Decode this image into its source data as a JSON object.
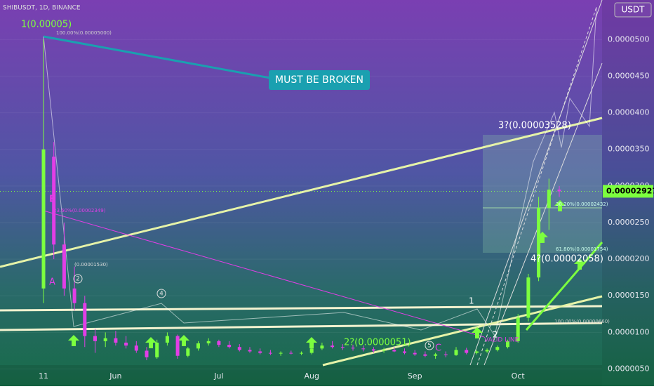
{
  "chart_data": {
    "type": "candlestick",
    "title": "SHIBUSDT, 1D, BINANCE",
    "currency": "USDT",
    "categories": [
      "11",
      null,
      null,
      null,
      null,
      null,
      null,
      "Jun",
      null,
      null,
      null,
      null,
      null,
      null,
      null,
      null,
      null,
      "Jul",
      null,
      null,
      null,
      null,
      null,
      null,
      null,
      null,
      "Aug",
      null,
      null,
      null,
      null,
      null,
      null,
      null,
      null,
      null,
      "Sep",
      null,
      null,
      null,
      null,
      null,
      null,
      null,
      null,
      null,
      "Oct",
      null,
      null,
      null,
      null
    ],
    "ohlc": [
      [
        1.6e-05,
        5e-05,
        1.4e-05,
        3.5e-05
      ],
      [
        3.4e-05,
        3.6e-05,
        2e-05,
        2.2e-05
      ],
      [
        2.2e-05,
        2.5e-05,
        1.5e-05,
        1.6e-05
      ],
      [
        1.6e-05,
        1.9e-05,
        1.3e-05,
        1.4e-05
      ],
      [
        1.4e-05,
        1.5e-05,
        8e-06,
        9.5e-06
      ],
      [
        9.5e-06,
        1.05e-05,
        7.2e-06,
        8.8e-06
      ],
      [
        8.8e-06,
        1e-05,
        8e-06,
        9.2e-06
      ],
      [
        9.2e-06,
        1.02e-05,
        8.2e-06,
        8.6e-06
      ],
      [
        8.6e-06,
        9.5e-06,
        7.8e-06,
        8.2e-06
      ],
      [
        8.2e-06,
        8.8e-06,
        7.2e-06,
        7.5e-06
      ],
      [
        7.5e-06,
        8e-06,
        6.2e-06,
        6.6e-06
      ],
      [
        6.6e-06,
        9e-06,
        6.4e-06,
        8.6e-06
      ],
      [
        8.6e-06,
        1e-05,
        8.2e-06,
        9.5e-06
      ],
      [
        9.5e-06,
        9.7e-06,
        6.4e-06,
        6.8e-06
      ],
      [
        6.8e-06,
        8e-06,
        6.6e-06,
        7.8e-06
      ],
      [
        7.8e-06,
        8.8e-06,
        7.5e-06,
        8.5e-06
      ],
      [
        8.5e-06,
        9.2e-06,
        8.2e-06,
        8.8e-06
      ],
      [
        8.8e-06,
        9e-06,
        8e-06,
        8.3e-06
      ],
      [
        8.3e-06,
        8.8e-06,
        7.8e-06,
        8e-06
      ],
      [
        8e-06,
        8.4e-06,
        7.4e-06,
        7.6e-06
      ],
      [
        7.6e-06,
        8e-06,
        7.2e-06,
        7.4e-06
      ],
      [
        7.4e-06,
        7.8e-06,
        7e-06,
        7.2e-06
      ],
      [
        7.2e-06,
        7.6e-06,
        6.9e-06,
        7.1e-06
      ],
      [
        7.1e-06,
        7.4e-06,
        6.8e-06,
        7.2e-06
      ],
      [
        7.2e-06,
        7.5e-06,
        7e-06,
        7.1e-06
      ],
      [
        7.1e-06,
        7.4e-06,
        6.9e-06,
        7.2e-06
      ],
      [
        7.2e-06,
        8e-06,
        7e-06,
        7.8e-06
      ],
      [
        7.8e-06,
        8.6e-06,
        7.6e-06,
        8.2e-06
      ],
      [
        8.2e-06,
        8.8e-06,
        7.8e-06,
        8e-06
      ],
      [
        8e-06,
        8.4e-06,
        7.6e-06,
        7.9e-06
      ],
      [
        7.9e-06,
        8.3e-06,
        7.5e-06,
        7.8e-06
      ],
      [
        7.8e-06,
        8.2e-06,
        7.4e-06,
        7.7e-06
      ],
      [
        7.7e-06,
        8e-06,
        7.2e-06,
        7.5e-06
      ],
      [
        7.5e-06,
        7.9e-06,
        7.2e-06,
        7.6e-06
      ],
      [
        7.6e-06,
        8e-06,
        7.3e-06,
        7.4e-06
      ],
      [
        7.4e-06,
        7.8e-06,
        7e-06,
        7.2e-06
      ],
      [
        7.2e-06,
        7.6e-06,
        6.8e-06,
        7e-06
      ],
      [
        7e-06,
        7.4e-06,
        6.6e-06,
        6.8e-06
      ],
      [
        6.8e-06,
        7.2e-06,
        6.4e-06,
        7e-06
      ],
      [
        7e-06,
        7.4e-06,
        6.6e-06,
        6.9e-06
      ],
      [
        6.9e-06,
        8e-06,
        6.8e-06,
        7.6e-06
      ],
      [
        7.6e-06,
        7.9e-06,
        7e-06,
        7.2e-06
      ],
      [
        7.2e-06,
        7.6e-06,
        7e-06,
        7.4e-06
      ],
      [
        7.4e-06,
        7.8e-06,
        7.2e-06,
        7.6e-06
      ],
      [
        7.6e-06,
        8.2e-06,
        7.4e-06,
        8e-06
      ],
      [
        8e-06,
        9e-06,
        7.8e-06,
        8.8e-06
      ],
      [
        8.8e-06,
        1.25e-05,
        8.6e-06,
        1.2e-05
      ],
      [
        1.2e-05,
        1.8e-05,
        1.15e-05,
        1.75e-05
      ],
      [
        1.75e-05,
        2.85e-05,
        1.7e-05,
        2.7e-05
      ],
      [
        2.7e-05,
        3.1e-05,
        2.4e-05,
        2.95e-05
      ],
      [
        2.95e-05,
        3e-05,
        2.85e-05,
        2.927e-05
      ]
    ],
    "up_color": "#7cff3f",
    "down_color": "#e23ee6",
    "ylim": [
      2.65e-06,
      5.54e-05
    ],
    "yticks": [
      {
        "value": 5e-06,
        "label": "0.0000050"
      },
      {
        "value": 1e-05,
        "label": "0.0000100"
      },
      {
        "value": 1.5e-05,
        "label": "0.0000150"
      },
      {
        "value": 2e-05,
        "label": "0.0000200"
      },
      {
        "value": 2.5e-05,
        "label": "0.0000250"
      },
      {
        "value": 3e-05,
        "label": "0.0000300"
      },
      {
        "value": 3.5e-05,
        "label": "0.0000350"
      },
      {
        "value": 4e-05,
        "label": "0.0000400"
      },
      {
        "value": 4.5e-05,
        "label": "0.0000450"
      },
      {
        "value": 5e-05,
        "label": "0.0000500"
      }
    ],
    "last_price": {
      "value": 2.927e-05,
      "label": "0.00002927"
    },
    "annotations": [
      "1(0.00005)",
      "MUST BE BROKEN",
      "B",
      "A",
      "23.60%(0.00002349)",
      "(0.00001530)",
      "2",
      "4",
      "5",
      "C",
      "2?(0.0000051)",
      "VALID LINE",
      "1",
      "2",
      "3?(0.00003528)",
      "4?(0.00002058)",
      "61.80%(0.00001754)",
      "38.20%(0.00002432)",
      "100.00%(0.00005000)",
      "100.00%(0.00000660)"
    ]
  }
}
